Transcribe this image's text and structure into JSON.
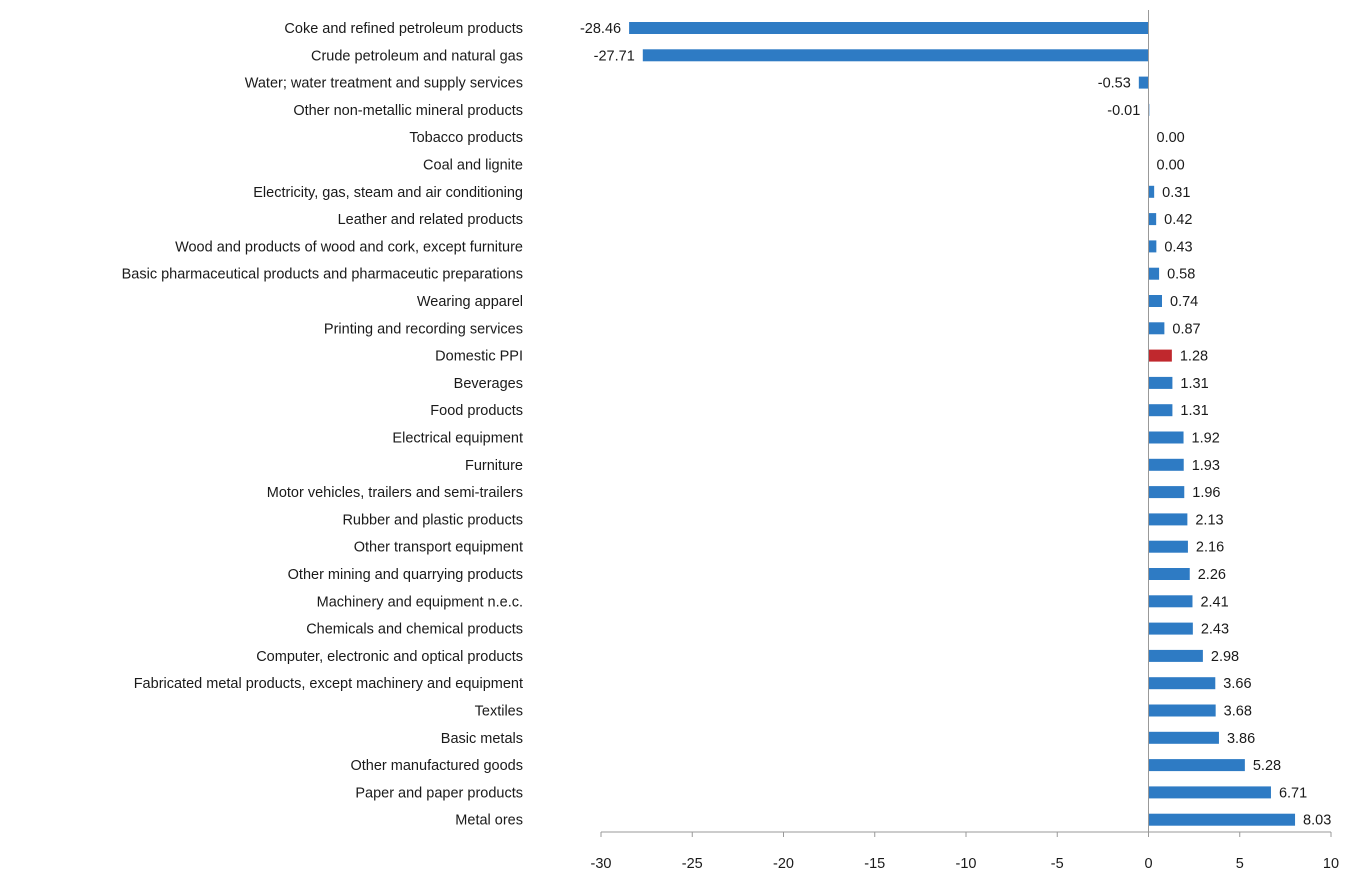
{
  "chart_data": {
    "type": "bar",
    "orientation": "horizontal",
    "title": "",
    "xlabel": "",
    "ylabel": "",
    "xlim": [
      -30,
      10
    ],
    "xticks": [
      -30,
      -25,
      -20,
      -15,
      -10,
      -5,
      0,
      5,
      10
    ],
    "grid": false,
    "legend": "none",
    "colors": {
      "default": "#2E7BC4",
      "highlight": "#C0282D",
      "axis": "#999999"
    },
    "highlight_category": "Domestic PPI",
    "categories": [
      "Coke and refined petroleum products",
      "Crude petroleum and natural gas",
      "Water; water treatment and supply services",
      "Other non-metallic mineral products",
      "Tobacco products",
      "Coal and lignite",
      "Electricity, gas, steam and air conditioning",
      "Leather and related products",
      "Wood and products of wood and cork, except furniture",
      "Basic pharmaceutical products and pharmaceutic preparations",
      "Wearing apparel",
      "Printing and recording services",
      "Domestic PPI",
      "Beverages",
      "Food products",
      "Electrical equipment",
      "Furniture",
      "Motor vehicles, trailers and semi-trailers",
      "Rubber and plastic products",
      "Other transport equipment",
      "Other mining and quarrying products",
      "Machinery and equipment n.e.c.",
      "Chemicals and chemical products",
      "Computer, electronic and optical products",
      "Fabricated metal products, except machinery and equipment",
      "Textiles",
      "Basic metals",
      "Other manufactured goods",
      "Paper and paper products",
      "Metal ores"
    ],
    "values": [
      -28.46,
      -27.71,
      -0.53,
      -0.01,
      0.0,
      0.0,
      0.31,
      0.42,
      0.43,
      0.58,
      0.74,
      0.87,
      1.28,
      1.31,
      1.31,
      1.92,
      1.93,
      1.96,
      2.13,
      2.16,
      2.26,
      2.41,
      2.43,
      2.98,
      3.66,
      3.68,
      3.86,
      5.28,
      6.71,
      8.03
    ],
    "value_labels": [
      "-28.46",
      "-27.71",
      "-0.53",
      "-0.01",
      "0.00",
      "0.00",
      "0.31",
      "0.42",
      "0.43",
      "0.58",
      "0.74",
      "0.87",
      "1.28",
      "1.31",
      "1.31",
      "1.92",
      "1.93",
      "1.96",
      "2.13",
      "2.16",
      "2.26",
      "2.41",
      "2.43",
      "2.98",
      "3.66",
      "3.68",
      "3.86",
      "5.28",
      "6.71",
      "8.03"
    ],
    "tick_labels": [
      "-30",
      "-25",
      "-20",
      "-15",
      "-10",
      "-5",
      "0",
      "5",
      "10"
    ]
  }
}
